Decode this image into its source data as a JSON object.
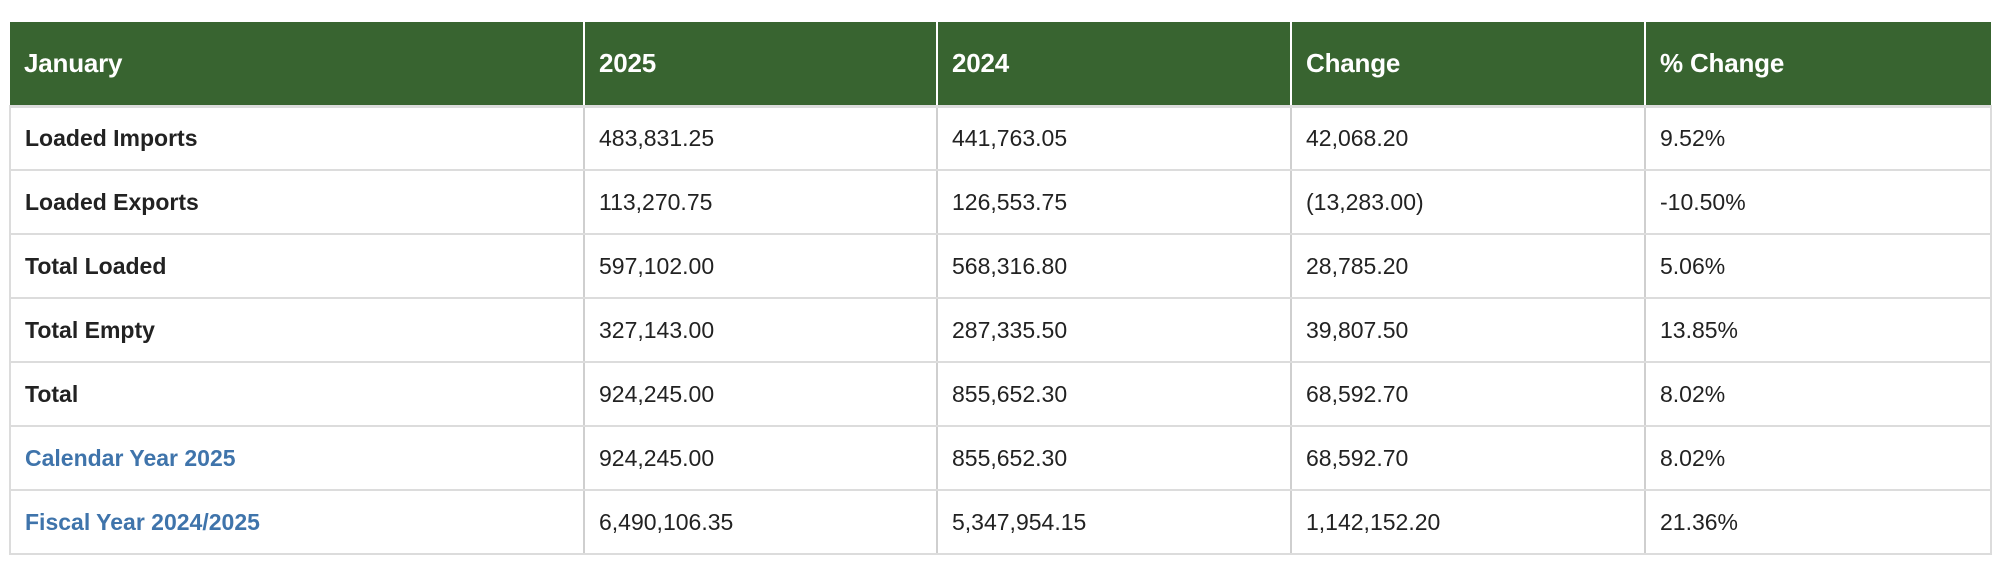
{
  "table": {
    "headers": [
      "January",
      "2025",
      "2024",
      "Change",
      "% Change"
    ],
    "rows": [
      {
        "label": "Loaded Imports",
        "is_link": false,
        "values": [
          "483,831.25",
          "441,763.05",
          "42,068.20",
          "9.52%"
        ]
      },
      {
        "label": "Loaded Exports",
        "is_link": false,
        "values": [
          "113,270.75",
          "126,553.75",
          "(13,283.00)",
          "-10.50%"
        ]
      },
      {
        "label": "Total Loaded",
        "is_link": false,
        "values": [
          "597,102.00",
          "568,316.80",
          "28,785.20",
          "5.06%"
        ]
      },
      {
        "label": "Total Empty",
        "is_link": false,
        "values": [
          "327,143.00",
          "287,335.50",
          "39,807.50",
          "13.85%"
        ]
      },
      {
        "label": "Total",
        "is_link": false,
        "values": [
          "924,245.00",
          "855,652.30",
          "68,592.70",
          "8.02%"
        ]
      },
      {
        "label": "Calendar Year 2025",
        "is_link": true,
        "values": [
          "924,245.00",
          "855,652.30",
          "68,592.70",
          "8.02%"
        ]
      },
      {
        "label": "Fiscal Year 2024/2025",
        "is_link": true,
        "values": [
          "6,490,106.35",
          "5,347,954.15",
          "1,142,152.20",
          "21.36%"
        ]
      }
    ]
  },
  "colors": {
    "header_bg": "#386430",
    "header_text": "#ffffff",
    "link_text": "#3f74ab",
    "body_text": "#222222",
    "border": "#dcdcdc"
  }
}
